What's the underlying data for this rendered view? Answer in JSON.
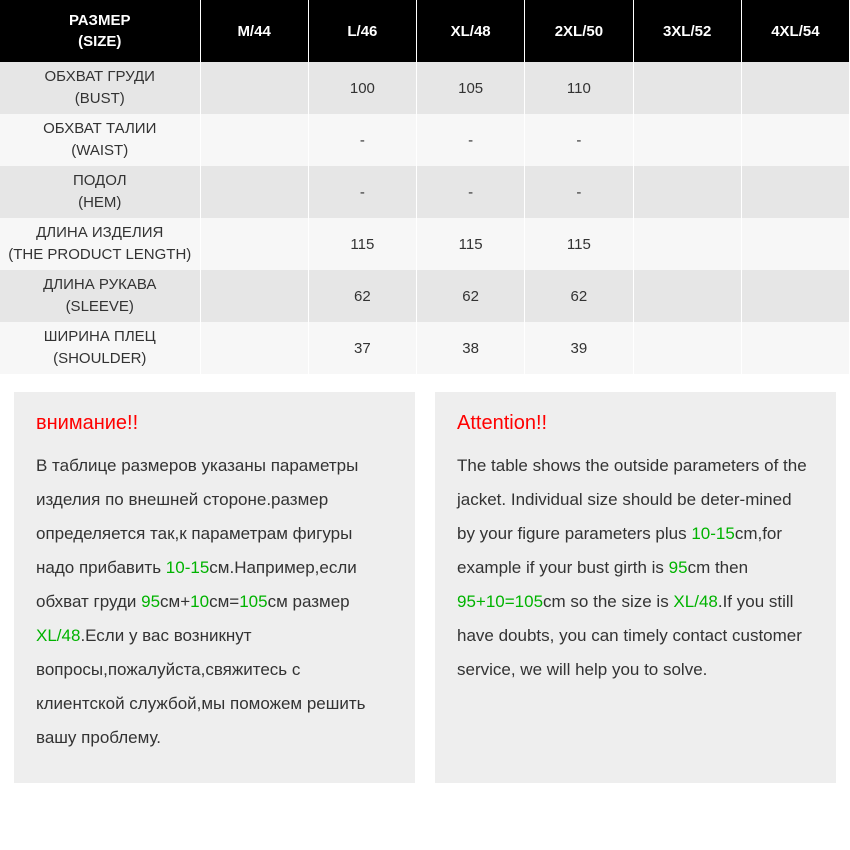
{
  "table": {
    "header_label_ru": "РАЗМЕР",
    "header_label_en": "(SIZE)",
    "sizes": [
      "M/44",
      "L/46",
      "XL/48",
      "2XL/50",
      "3XL/52",
      "4XL/54"
    ],
    "rows": [
      {
        "ru": "ОБХВАТ ГРУДИ",
        "en": "(BUST)",
        "vals": [
          "",
          "100",
          "105",
          "110",
          "",
          ""
        ]
      },
      {
        "ru": "ОБХВАТ ТАЛИИ",
        "en": "(WAIST)",
        "vals": [
          "",
          "-",
          "-",
          "-",
          "",
          ""
        ]
      },
      {
        "ru": "ПОДОЛ",
        "en": "(HEM)",
        "vals": [
          "",
          "-",
          "-",
          "-",
          "",
          ""
        ]
      },
      {
        "ru": "ДЛИНА ИЗДЕЛИЯ",
        "en": "(THE PRODUCT LENGTH)",
        "vals": [
          "",
          "115",
          "115",
          "115",
          "",
          ""
        ]
      },
      {
        "ru": "ДЛИНА РУКАВА",
        "en": "(SLEEVE)",
        "vals": [
          "",
          "62",
          "62",
          "62",
          "",
          ""
        ]
      },
      {
        "ru": "ШИРИНА ПЛЕЦ",
        "en": "(SHOULDER)",
        "vals": [
          "",
          "37",
          "38",
          "39",
          "",
          ""
        ]
      }
    ]
  },
  "note_ru": {
    "title": "внимание!!",
    "segments": [
      {
        "t": "В таблице размеров указаны параметры изделия по внешней стороне.размер определяется так,к параметрам фигуры надо прибавить ",
        "hl": false
      },
      {
        "t": "10-15",
        "hl": true
      },
      {
        "t": "см.Например,если обхват груди ",
        "hl": false
      },
      {
        "t": "95",
        "hl": true
      },
      {
        "t": "см+",
        "hl": false
      },
      {
        "t": "10",
        "hl": true
      },
      {
        "t": "см=",
        "hl": false
      },
      {
        "t": "105",
        "hl": true
      },
      {
        "t": "см размер ",
        "hl": false
      },
      {
        "t": "XL/48",
        "hl": true
      },
      {
        "t": ".Если у вас возникнут вопросы,пожалуйста,свяжитесь с клиентской службой,мы поможем решить вашу проблему.",
        "hl": false
      }
    ]
  },
  "note_en": {
    "title": "Attention!!",
    "segments": [
      {
        "t": "The table shows the outside parameters of the jacket. Individual size should be deter-mined by your figure parameters plus ",
        "hl": false
      },
      {
        "t": "10-15",
        "hl": true
      },
      {
        "t": "cm,for example if your bust girth is ",
        "hl": false
      },
      {
        "t": "95",
        "hl": true
      },
      {
        "t": "cm then ",
        "hl": false
      },
      {
        "t": "95+10=105",
        "hl": true
      },
      {
        "t": "cm so the size is ",
        "hl": false
      },
      {
        "t": "XL/48",
        "hl": true
      },
      {
        "t": ".If you still have doubts, you can timely contact customer service, we will help you to solve.",
        "hl": false
      }
    ]
  },
  "colors": {
    "header_bg": "#000000",
    "header_fg": "#ffffff",
    "row_odd_bg": "#e6e6e6",
    "row_even_bg": "#f7f7f7",
    "note_bg": "#eeeeee",
    "title_color": "#ff0000",
    "highlight_color": "#00b300",
    "body_color": "#333333"
  }
}
